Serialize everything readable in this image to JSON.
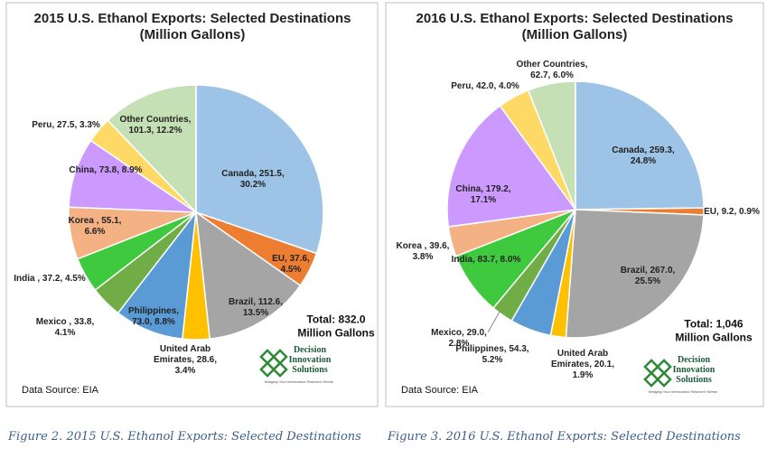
{
  "chart_data": [
    {
      "type": "pie",
      "title": "2015 U.S. Ethanol Exports: Selected Destinations\n(Million Gallons)",
      "values": [
        251.5,
        37.6,
        112.6,
        28.6,
        73.0,
        33.8,
        37.2,
        55.1,
        73.8,
        27.5,
        101.3
      ],
      "value_labels": [
        "Canada, 251.5,\n30.2%",
        "EU, 37.6,\n4.5%",
        "Brazil, 112.6,\n13.5%",
        "United Arab\nEmirates, 28.6,\n3.4%",
        "Philippines,\n73.0, 8.8%",
        "Mexico , 33.8,\n4.1%",
        "India , 37.2, 4.5%",
        "Korea , 55.1,\n6.6%",
        "China, 73.8, 8.9%",
        "Peru, 27.5, 3.3%",
        "Other Countries,\n101.3, 12.2%"
      ],
      "colors": [
        "#9dc3e6",
        "#ed7d31",
        "#a5a5a5",
        "#ffc000",
        "#5b9bd5",
        "#70ad47",
        "#3ec93e",
        "#f4b183",
        "#cc99ff",
        "#ffd966",
        "#c5e0b4"
      ],
      "annotation": "Total: 832.0\nMillion Gallons",
      "source": "Data Source: EIA"
    },
    {
      "type": "pie",
      "title": "2016 U.S. Ethanol Exports: Selected Destinations\n(Million Gallons)",
      "values": [
        259.3,
        9.2,
        267.0,
        20.1,
        54.3,
        29.0,
        83.7,
        39.6,
        179.2,
        42.0,
        62.7
      ],
      "value_labels": [
        "Canada, 259.3,\n24.8%",
        "EU, 9.2, 0.9%",
        "Brazil, 267.0,\n25.5%",
        "United Arab\nEmirates, 20.1,\n1.9%",
        "Philippines, 54.3,\n5.2%",
        "Mexico, 29.0,\n2.8%",
        "India, 83.7, 8.0%",
        "Korea , 39.6,\n3.8%",
        "China, 179.2,\n17.1%",
        "Peru, 42.0, 4.0%",
        "Other Countries,\n62.7, 6.0%"
      ],
      "colors": [
        "#9dc3e6",
        "#ed7d31",
        "#a5a5a5",
        "#ffc000",
        "#5b9bd5",
        "#70ad47",
        "#3ec93e",
        "#f4b183",
        "#cc99ff",
        "#ffd966",
        "#c5e0b4"
      ],
      "annotation": "Total: 1,046\nMillion Gallons",
      "source": "Data Source: EIA"
    }
  ],
  "logo": {
    "name": "Decision\nInnovation\nSolutions",
    "tagline": "Bridging Your Information Research Needs"
  },
  "captions": [
    "Figure 2. 2015 U.S. Ethanol Exports: Selected Destinations",
    "Figure 3. 2016 U.S. Ethanol Exports: Selected Destinations"
  ]
}
